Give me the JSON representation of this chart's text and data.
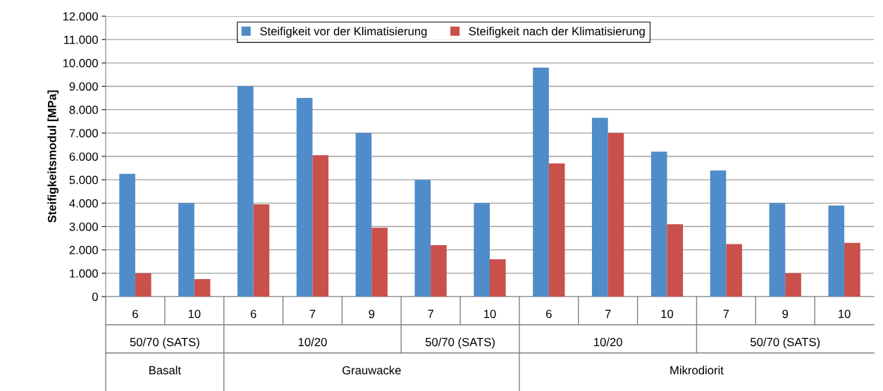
{
  "chart_data": {
    "type": "bar",
    "ylabel": "Steifigkeitsmodul [MPa]",
    "categories": [
      "6",
      "10",
      "6",
      "7",
      "9",
      "7",
      "10",
      "6",
      "7",
      "10",
      "7",
      "9",
      "10"
    ],
    "series": [
      {
        "name": "Steifigkeit vor der Klimatisierung",
        "color": "#4f8cc9",
        "values": [
          5250,
          4000,
          9000,
          8500,
          7000,
          5000,
          4000,
          9800,
          7650,
          6200,
          5400,
          4000,
          3900
        ]
      },
      {
        "name": "Steifigkeit nach der Klimatisierung",
        "color": "#c9504b",
        "values": [
          1000,
          750,
          3950,
          6050,
          2950,
          2200,
          1600,
          5700,
          7000,
          3100,
          2250,
          1000,
          2300
        ]
      }
    ],
    "annotations": [
      "50/70 (SATS)",
      "10/20",
      "50/70 (SATS)",
      "10/20",
      "50/70 (SATS)",
      "Basalt",
      "Grauwacke",
      "Mikrodiorit"
    ],
    "ylim": [
      0,
      12000
    ],
    "yticks": [
      0,
      {
        "value": 1000,
        "label": "1.000"
      },
      {
        "value": 2000,
        "label": "2.000"
      },
      {
        "value": 3000,
        "label": "3.000"
      },
      {
        "value": 4000,
        "label": "4.000"
      },
      {
        "value": 5000,
        "label": "5.000"
      },
      {
        "value": 6000,
        "label": "6.000"
      },
      {
        "value": 7000,
        "label": "7.000"
      },
      {
        "value": 8000,
        "label": "8.000"
      },
      {
        "value": 9000,
        "label": "9.000"
      },
      {
        "value": 10000,
        "label": "10.000"
      },
      {
        "value": 11000,
        "label": "11.000"
      },
      {
        "value": 12000,
        "label": "12.000"
      }
    ],
    "grid": "y",
    "legend": "top"
  }
}
